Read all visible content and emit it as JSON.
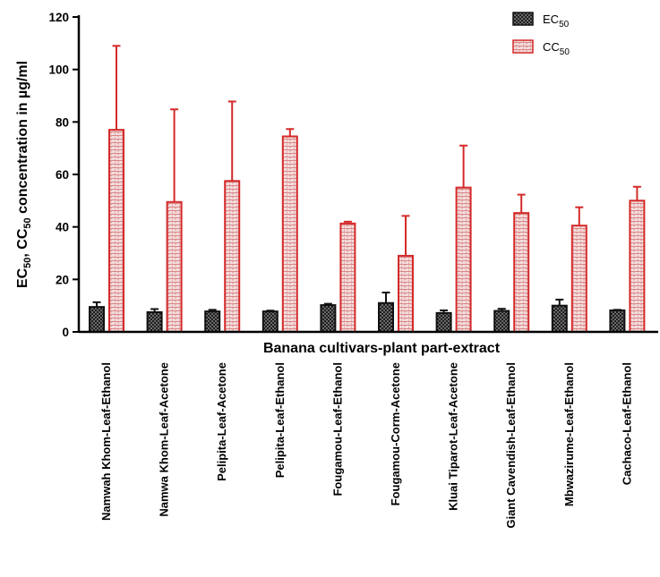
{
  "chart_data": {
    "type": "bar",
    "xlabel": "Banana cultivars-plant part-extract",
    "ylabel": {
      "parts": [
        {
          "t": "EC"
        },
        {
          "t": "50",
          "sub": true
        },
        {
          "t": ", CC"
        },
        {
          "t": "50",
          "sub": true
        },
        {
          "t": " concentration in µg/ml"
        }
      ]
    },
    "ylim": [
      0,
      120
    ],
    "yticks": [
      0,
      20,
      40,
      60,
      80,
      100,
      120
    ],
    "categories": [
      "Namwah Khom-Leaf-Ethanol",
      "Namwa Khom-Leaf-Acetone",
      "Pelipita-Leaf-Acetone",
      "Pelipita-Leaf-Ethanol",
      "Fougamou-Leaf-Ethanol",
      "Fougamou-Corm-Acetone",
      "Kluai Tiparot-Leaf-Acetone",
      "Giant Cavendish-Leaf-Ethanol",
      "Mbwazirume-Leaf-Ethanol",
      "Cachaco-Leaf-Ethanol"
    ],
    "series": [
      {
        "name": "EC",
        "name_sub": "50",
        "values": [
          9.5,
          7.5,
          7.8,
          7.8,
          10.2,
          11.0,
          7.2,
          8.0,
          10.0,
          8.2
        ],
        "errors": [
          1.8,
          1.2,
          0.6,
          0.3,
          0.5,
          4.0,
          1.0,
          0.8,
          2.3,
          0.2
        ],
        "fill": "#555555",
        "stroke": "#111111"
      },
      {
        "name": "CC",
        "name_sub": "50",
        "values": [
          77.0,
          49.5,
          57.5,
          74.5,
          41.3,
          29.0,
          55.0,
          45.3,
          40.5,
          50.0
        ],
        "errors": [
          32.0,
          35.3,
          30.3,
          2.8,
          0.7,
          15.2,
          16.0,
          7.0,
          7.0,
          5.3
        ],
        "fill": "#ecc9c9",
        "stroke": "#d42a2a"
      }
    ],
    "legend": "top-right",
    "grid": false
  }
}
